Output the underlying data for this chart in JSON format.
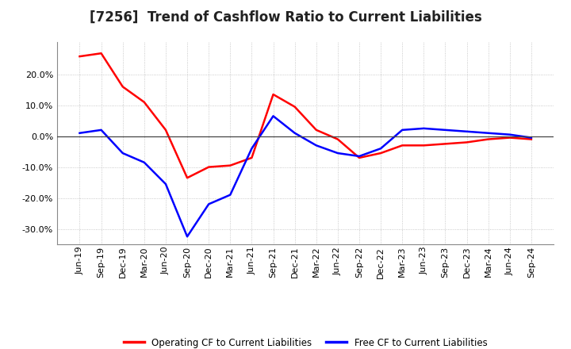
{
  "title": "[7256]  Trend of Cashflow Ratio to Current Liabilities",
  "x_labels": [
    "Jun-19",
    "Sep-19",
    "Dec-19",
    "Mar-20",
    "Jun-20",
    "Sep-20",
    "Dec-20",
    "Mar-21",
    "Jun-21",
    "Sep-21",
    "Dec-21",
    "Mar-22",
    "Jun-22",
    "Sep-22",
    "Dec-22",
    "Mar-23",
    "Jun-23",
    "Sep-23",
    "Dec-23",
    "Mar-24",
    "Jun-24",
    "Sep-24"
  ],
  "operating_cf": [
    0.258,
    0.268,
    0.16,
    0.11,
    0.02,
    -0.135,
    -0.1,
    -0.095,
    -0.07,
    0.135,
    0.095,
    0.02,
    -0.01,
    -0.07,
    -0.055,
    -0.03,
    -0.03,
    -0.025,
    -0.02,
    -0.01,
    -0.005,
    -0.01
  ],
  "free_cf": [
    0.01,
    0.02,
    -0.055,
    -0.085,
    -0.155,
    -0.325,
    -0.22,
    -0.19,
    -0.04,
    0.065,
    0.01,
    -0.03,
    -0.055,
    -0.065,
    -0.04,
    0.02,
    0.025,
    0.02,
    0.015,
    0.01,
    0.005,
    -0.005
  ],
  "operating_color": "#FF0000",
  "free_color": "#0000FF",
  "ylim": [
    -0.35,
    0.305
  ],
  "yticks": [
    -0.3,
    -0.2,
    -0.1,
    0.0,
    0.1,
    0.2
  ],
  "background_color": "#FFFFFF",
  "plot_bg_color": "#FFFFFF",
  "grid_color": "#BBBBBB",
  "legend_labels": [
    "Operating CF to Current Liabilities",
    "Free CF to Current Liabilities"
  ],
  "title_fontsize": 12,
  "tick_fontsize": 8
}
